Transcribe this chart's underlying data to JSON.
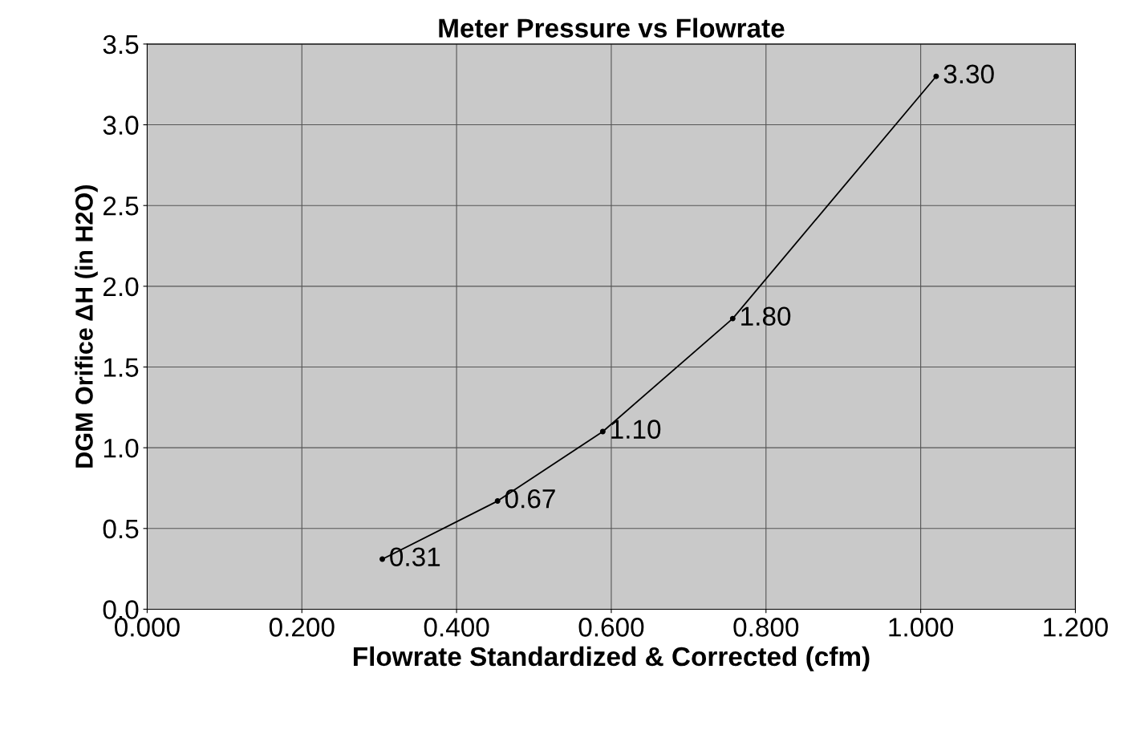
{
  "chart_data": {
    "type": "line",
    "title": "Meter Pressure vs Flowrate",
    "xlabel": "Flowrate Standardized & Corrected (cfm)",
    "ylabel": "DGM Orifice ΔH (in H2O)",
    "x": [
      0.304,
      0.453,
      0.589,
      0.757,
      1.02
    ],
    "series": [
      {
        "color": "#000000",
        "values": [
          0.31,
          0.67,
          1.1,
          1.8,
          3.3
        ],
        "value_labels": [
          "0.31",
          "0.67",
          "1.10",
          "1.80",
          "3.30"
        ]
      }
    ],
    "xlim": [
      0,
      1.2
    ],
    "xticks": [
      {
        "value": 0,
        "label": "0.000"
      },
      {
        "value": 0.2,
        "label": "0.200"
      },
      {
        "value": 0.4,
        "label": "0.400"
      },
      {
        "value": 0.6,
        "label": "0.600"
      },
      {
        "value": 0.8,
        "label": "0.800"
      },
      {
        "value": 1.0,
        "label": "1.000"
      },
      {
        "value": 1.2,
        "label": "1.200"
      }
    ],
    "ylim": [
      0,
      3.5
    ],
    "yticks": [
      {
        "value": 0,
        "label": "0.0"
      },
      {
        "value": 0.5,
        "label": "0.5"
      },
      {
        "value": 1.0,
        "label": "1.0"
      },
      {
        "value": 1.5,
        "label": "1.5"
      },
      {
        "value": 2.0,
        "label": "2.0"
      },
      {
        "value": 2.5,
        "label": "2.5"
      },
      {
        "value": 3.0,
        "label": "3.0"
      },
      {
        "value": 3.5,
        "label": "3.5"
      }
    ],
    "grid": true,
    "marker": "circle",
    "line_style": "solid"
  }
}
